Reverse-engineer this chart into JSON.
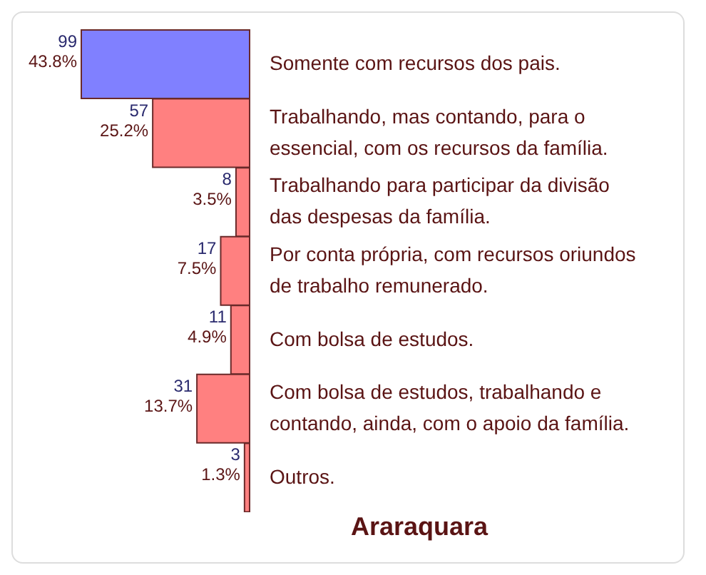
{
  "chart_data": {
    "type": "bar",
    "orientation": "horizontal",
    "title": "Araraquara",
    "categories": [
      "Somente com recursos dos pais.",
      "Trabalhando, mas contando, para o essencial, com os recursos da família.",
      "Trabalhando para participar da divisão das despesas da família.",
      "Por conta própria, com recursos oriundos de trabalho remunerado.",
      "Com bolsa de estudos.",
      "Com bolsa de estudos, trabalhando e contando, ainda, com o apoio da família.",
      "Outros."
    ],
    "values": [
      99,
      57,
      8,
      17,
      11,
      31,
      3
    ],
    "colors": [
      "#8080ff",
      "#ff8080",
      "#ff8080",
      "#ff8080",
      "#ff8080",
      "#ff8080",
      "#ff8080"
    ],
    "value_labels": [
      "99\n43.8%",
      "57\n25.2%",
      "8\n3.5%",
      "17\n7.5%",
      "11\n4.9%",
      "31\n13.7%",
      "3\n1.3%"
    ],
    "legend": false,
    "grid": false
  }
}
